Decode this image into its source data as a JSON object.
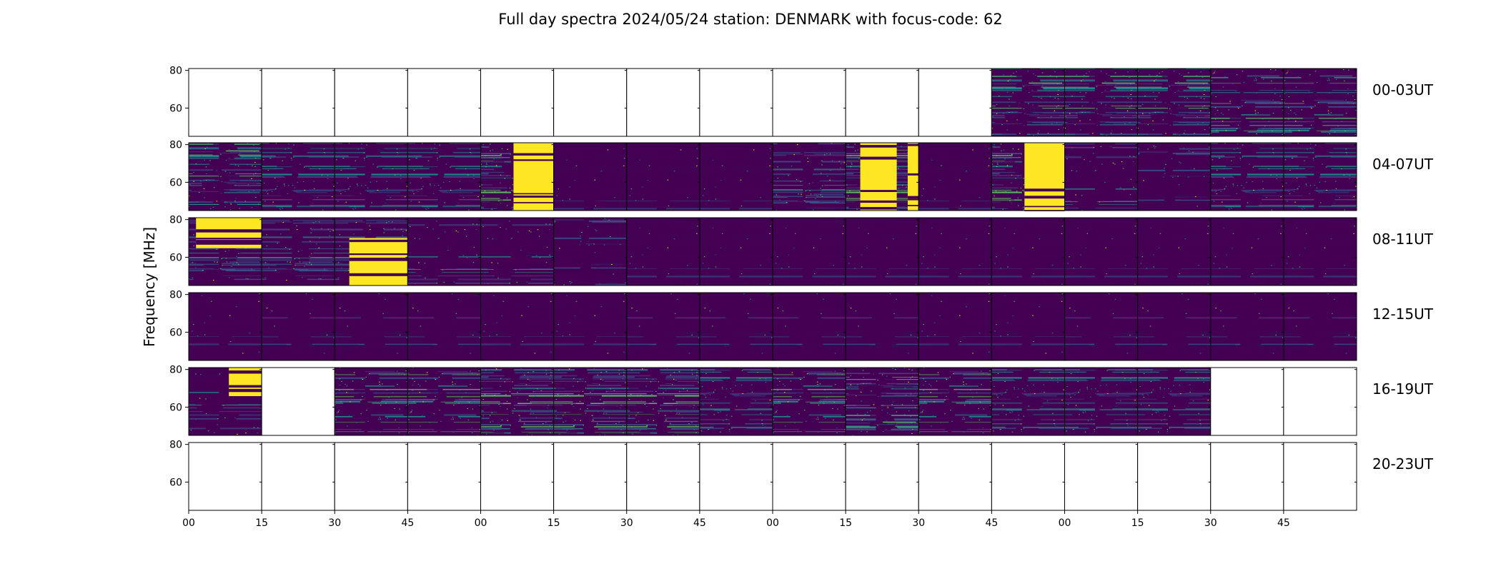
{
  "chart_data": {
    "type": "heatmap",
    "title": "Full day spectra 2024/05/24 station: DENMARK with focus-code: 62",
    "ylabel": "Frequency [MHz]",
    "xlabel": "",
    "ylim": [
      45,
      81
    ],
    "y_ticks": [
      "60",
      "80"
    ],
    "x_ticks": [
      "00",
      "15",
      "30",
      "45",
      "00",
      "15",
      "30",
      "45",
      "00",
      "15",
      "30",
      "45",
      "00",
      "15",
      "30",
      "45"
    ],
    "colormap": [
      "#440154",
      "#3b528b",
      "#21918c",
      "#5ec962",
      "#fde725"
    ],
    "rows": [
      {
        "label": "00-03UT",
        "panels": [
          {
            "data": false
          },
          {
            "data": false
          },
          {
            "data": false
          },
          {
            "data": false
          },
          {
            "data": false
          },
          {
            "data": false
          },
          {
            "data": false
          },
          {
            "data": false
          },
          {
            "data": false
          },
          {
            "data": false
          },
          {
            "data": false
          },
          {
            "data": true,
            "level": 0.45
          },
          {
            "data": true,
            "level": 0.45
          },
          {
            "data": true,
            "level": 0.45
          },
          {
            "data": true,
            "level": 0.4
          },
          {
            "data": true,
            "level": 0.4
          }
        ]
      },
      {
        "label": "04-07UT",
        "panels": [
          {
            "data": true,
            "level": 0.45
          },
          {
            "data": true,
            "level": 0.35
          },
          {
            "data": true,
            "level": 0.35
          },
          {
            "data": true,
            "level": 0.35
          },
          {
            "data": true,
            "level": 0.5,
            "bursts": [
              [
                0.45,
                1.0
              ]
            ]
          },
          {
            "data": true,
            "level": 0.1
          },
          {
            "data": true,
            "level": 0.1
          },
          {
            "data": true,
            "level": 0.1
          },
          {
            "data": true,
            "level": 0.3
          },
          {
            "data": true,
            "level": 0.5,
            "bursts": [
              [
                0.2,
                0.7
              ],
              [
                0.85,
                1.0
              ]
            ]
          },
          {
            "data": true,
            "level": 0.1
          },
          {
            "data": true,
            "level": 0.5,
            "bursts": [
              [
                0.45,
                1.0
              ]
            ]
          },
          {
            "data": true,
            "level": 0.2
          },
          {
            "data": true,
            "level": 0.15
          },
          {
            "data": true,
            "level": 0.35
          },
          {
            "data": true,
            "level": 0.35
          }
        ]
      },
      {
        "label": "08-11UT",
        "panels": [
          {
            "data": true,
            "level": 0.3,
            "bursts": [
              [
                0.1,
                1.0
              ]
            ],
            "band": "top"
          },
          {
            "data": true,
            "level": 0.3
          },
          {
            "data": true,
            "level": 0.3,
            "bursts": [
              [
                0.2,
                1.0
              ]
            ],
            "band": "bottom"
          },
          {
            "data": true,
            "level": 0.2
          },
          {
            "data": true,
            "level": 0.2
          },
          {
            "data": true,
            "level": 0.15
          },
          {
            "data": true,
            "level": 0.1
          },
          {
            "data": true,
            "level": 0.1
          },
          {
            "data": true,
            "level": 0.1
          },
          {
            "data": true,
            "level": 0.1
          },
          {
            "data": true,
            "level": 0.1
          },
          {
            "data": true,
            "level": 0.08
          },
          {
            "data": true,
            "level": 0.08
          },
          {
            "data": true,
            "level": 0.08
          },
          {
            "data": true,
            "level": 0.08
          },
          {
            "data": true,
            "level": 0.08
          }
        ]
      },
      {
        "label": "12-15UT",
        "panels": [
          {
            "data": true,
            "level": 0.08
          },
          {
            "data": true,
            "level": 0.06
          },
          {
            "data": true,
            "level": 0.06
          },
          {
            "data": true,
            "level": 0.06
          },
          {
            "data": true,
            "level": 0.08
          },
          {
            "data": true,
            "level": 0.1
          },
          {
            "data": true,
            "level": 0.06
          },
          {
            "data": true,
            "level": 0.06
          },
          {
            "data": true,
            "level": 0.06
          },
          {
            "data": true,
            "level": 0.06
          },
          {
            "data": true,
            "level": 0.08
          },
          {
            "data": true,
            "level": 0.08
          },
          {
            "data": true,
            "level": 0.06
          },
          {
            "data": true,
            "level": 0.06
          },
          {
            "data": true,
            "level": 0.06
          },
          {
            "data": true,
            "level": 0.06
          }
        ]
      },
      {
        "label": "16-19UT",
        "panels": [
          {
            "data": true,
            "level": 0.2,
            "bursts": [
              [
                0.55,
                1.0
              ]
            ],
            "band": "top"
          },
          {
            "data": false
          },
          {
            "data": true,
            "level": 0.4
          },
          {
            "data": true,
            "level": 0.4
          },
          {
            "data": true,
            "level": 0.5
          },
          {
            "data": true,
            "level": 0.5
          },
          {
            "data": true,
            "level": 0.5
          },
          {
            "data": true,
            "level": 0.35
          },
          {
            "data": true,
            "level": 0.4
          },
          {
            "data": true,
            "level": 0.45
          },
          {
            "data": true,
            "level": 0.4
          },
          {
            "data": true,
            "level": 0.35
          },
          {
            "data": true,
            "level": 0.35
          },
          {
            "data": true,
            "level": 0.35
          },
          {
            "data": false
          },
          {
            "data": false
          }
        ]
      },
      {
        "label": "20-23UT",
        "panels": [
          {
            "data": false
          },
          {
            "data": false
          },
          {
            "data": false
          },
          {
            "data": false
          },
          {
            "data": false
          },
          {
            "data": false
          },
          {
            "data": false
          },
          {
            "data": false
          },
          {
            "data": false
          },
          {
            "data": false
          },
          {
            "data": false
          },
          {
            "data": false
          },
          {
            "data": false
          },
          {
            "data": false
          },
          {
            "data": false
          },
          {
            "data": false
          }
        ]
      }
    ]
  }
}
